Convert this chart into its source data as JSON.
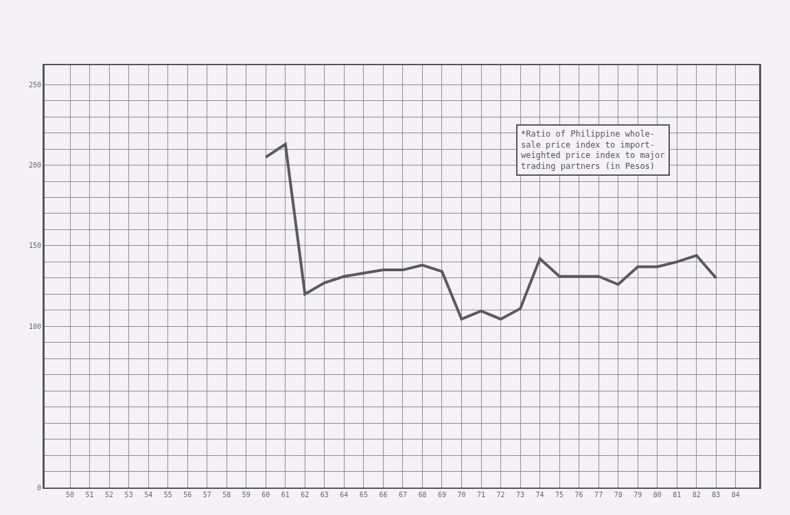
{
  "chart_data": {
    "type": "line",
    "x": [
      60,
      61,
      62,
      63,
      64,
      65,
      66,
      67,
      68,
      69,
      70,
      71,
      72,
      73,
      74,
      75,
      76,
      77,
      78,
      79,
      80,
      81,
      82,
      83
    ],
    "series": [
      {
        "color": "#5a5a5a",
        "values": [
          205,
          213,
          120,
          127,
          131,
          133,
          135,
          135,
          138,
          134,
          104.5,
          109.5,
          104.5,
          111,
          142,
          131,
          131,
          131,
          126,
          137,
          137,
          140,
          144,
          130
        ]
      }
    ],
    "xlim": [
      48.7,
      85.2
    ],
    "xticks": [
      50,
      51,
      52,
      53,
      54,
      55,
      56,
      57,
      58,
      59,
      60,
      61,
      62,
      63,
      64,
      65,
      66,
      67,
      68,
      69,
      70,
      71,
      72,
      73,
      74,
      75,
      76,
      77,
      78,
      79,
      80,
      81,
      82,
      83,
      84
    ],
    "ylim": [
      0,
      262
    ],
    "yticks": [
      0,
      {
        "value": 10,
        "label": null
      },
      {
        "value": 20,
        "label": null
      },
      {
        "value": 30,
        "label": null
      },
      {
        "value": 40,
        "label": null
      },
      {
        "value": 50,
        "label": null
      },
      {
        "value": 60,
        "label": null
      },
      {
        "value": 70,
        "label": null
      },
      {
        "value": 80,
        "label": null
      },
      {
        "value": 90,
        "label": null
      },
      100,
      {
        "value": 110,
        "label": null
      },
      {
        "value": 120,
        "label": null
      },
      {
        "value": 130,
        "label": null
      },
      {
        "value": 140,
        "label": null
      },
      150,
      {
        "value": 160,
        "label": null
      },
      {
        "value": 170,
        "label": null
      },
      {
        "value": 180,
        "label": null
      },
      {
        "value": 190,
        "label": null
      },
      200,
      {
        "value": 210,
        "label": null
      },
      {
        "value": 220,
        "label": null
      },
      {
        "value": 230,
        "label": null
      },
      {
        "value": 240,
        "label": null
      },
      250
    ],
    "grid": true,
    "marker": "none",
    "line_style": "solid",
    "annotations": [
      "*Ratio of Philippine whole-\nsale price index to import-\nweighted price index to major\ntrading partners (in Pesos)"
    ]
  }
}
